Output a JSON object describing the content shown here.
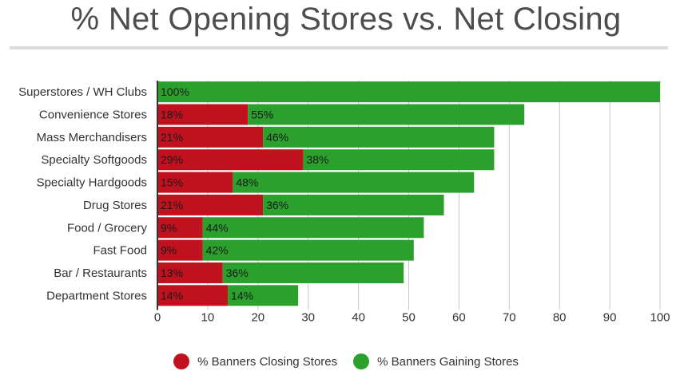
{
  "title": "% Net Opening Stores vs. Net Closing",
  "chart_data": {
    "type": "bar",
    "orientation": "horizontal",
    "stacked": true,
    "title": "% Net Opening Stores vs. Net Closing",
    "categories": [
      "Superstores / WH Clubs",
      "Convenience Stores",
      "Mass Merchandisers",
      "Specialty Softgoods",
      "Specialty Hardgoods",
      "Drug Stores",
      "Food / Grocery",
      "Fast Food",
      "Bar / Restaurants",
      "Department Stores"
    ],
    "series": [
      {
        "name": "% Banners Closing Stores",
        "color": "#c0111f",
        "values": [
          0,
          18,
          21,
          29,
          15,
          21,
          9,
          9,
          13,
          14
        ],
        "labels": [
          "",
          "18%",
          "21%",
          "29%",
          "15%",
          "21%",
          "9%",
          "9%",
          "13%",
          "14%"
        ]
      },
      {
        "name": "% Banners Gaining Stores",
        "color": "#2ca02c",
        "values": [
          100,
          55,
          46,
          38,
          48,
          36,
          44,
          42,
          36,
          14
        ],
        "labels": [
          "100%",
          "55%",
          "46%",
          "38%",
          "48%",
          "36%",
          "44%",
          "42%",
          "36%",
          "14%"
        ]
      }
    ],
    "xlim": [
      0,
      100
    ],
    "xticks": [
      "0",
      "10",
      "20",
      "30",
      "40",
      "50",
      "60",
      "70",
      "80",
      "90",
      "100"
    ],
    "grid": true,
    "legend_position": "bottom"
  }
}
